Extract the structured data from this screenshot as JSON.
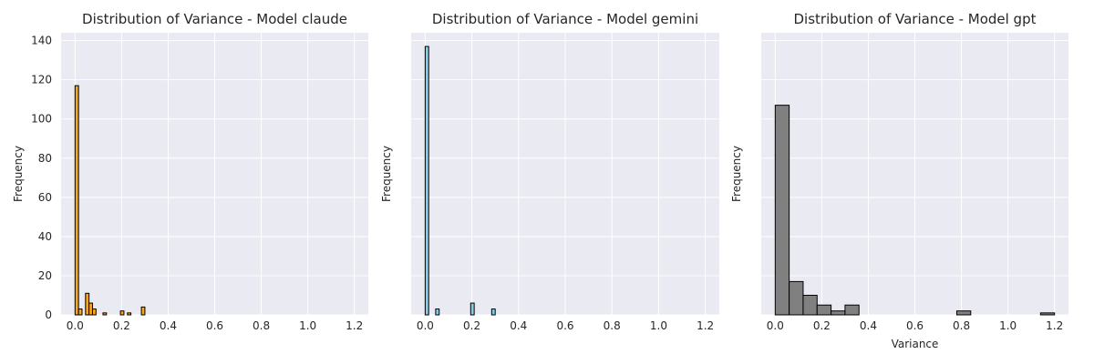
{
  "chart_data": [
    {
      "type": "bar",
      "title": "Distribution of Variance - Model claude",
      "xlabel": "",
      "ylabel": "Frequency",
      "xlim": [
        -0.06,
        1.26
      ],
      "ylim": [
        0,
        144
      ],
      "xticks": [
        "0.0",
        "0.2",
        "0.4",
        "0.6",
        "0.8",
        "1.0",
        "1.2"
      ],
      "yticks": [
        "0",
        "20",
        "40",
        "60",
        "80",
        "100",
        "120",
        "140"
      ],
      "color": "#f5a623",
      "grid": true,
      "bins": [
        {
          "x0": 0.0,
          "x1": 0.015,
          "count": 117
        },
        {
          "x0": 0.015,
          "x1": 0.03,
          "count": 3
        },
        {
          "x0": 0.045,
          "x1": 0.06,
          "count": 11
        },
        {
          "x0": 0.06,
          "x1": 0.075,
          "count": 6
        },
        {
          "x0": 0.075,
          "x1": 0.09,
          "count": 3
        },
        {
          "x0": 0.12,
          "x1": 0.135,
          "count": 1
        },
        {
          "x0": 0.195,
          "x1": 0.21,
          "count": 2
        },
        {
          "x0": 0.225,
          "x1": 0.24,
          "count": 1
        },
        {
          "x0": 0.285,
          "x1": 0.3,
          "count": 4
        }
      ]
    },
    {
      "type": "bar",
      "title": "Distribution of Variance - Model gemini",
      "xlabel": "",
      "ylabel": "Frequency",
      "xlim": [
        -0.06,
        1.26
      ],
      "ylim": [
        0,
        144
      ],
      "xticks": [
        "0.0",
        "0.2",
        "0.4",
        "0.6",
        "0.8",
        "1.0",
        "1.2"
      ],
      "yticks": [],
      "color": "#87ceeb",
      "grid": true,
      "bins": [
        {
          "x0": 0.0,
          "x1": 0.015,
          "count": 137
        },
        {
          "x0": 0.045,
          "x1": 0.06,
          "count": 3
        },
        {
          "x0": 0.195,
          "x1": 0.21,
          "count": 6
        },
        {
          "x0": 0.285,
          "x1": 0.3,
          "count": 3
        }
      ]
    },
    {
      "type": "bar",
      "title": "Distribution of Variance - Model gpt",
      "xlabel": "Variance",
      "ylabel": "Frequency",
      "xlim": [
        -0.06,
        1.26
      ],
      "ylim": [
        0,
        144
      ],
      "xticks": [
        "0.0",
        "0.2",
        "0.4",
        "0.6",
        "0.8",
        "1.0",
        "1.2"
      ],
      "yticks": [],
      "color": "#808080",
      "grid": true,
      "bins": [
        {
          "x0": 0.0,
          "x1": 0.06,
          "count": 107
        },
        {
          "x0": 0.06,
          "x1": 0.12,
          "count": 17
        },
        {
          "x0": 0.12,
          "x1": 0.18,
          "count": 10
        },
        {
          "x0": 0.18,
          "x1": 0.24,
          "count": 5
        },
        {
          "x0": 0.24,
          "x1": 0.3,
          "count": 2
        },
        {
          "x0": 0.3,
          "x1": 0.36,
          "count": 5
        },
        {
          "x0": 0.78,
          "x1": 0.84,
          "count": 2
        },
        {
          "x0": 1.14,
          "x1": 1.2,
          "count": 1
        }
      ]
    }
  ]
}
